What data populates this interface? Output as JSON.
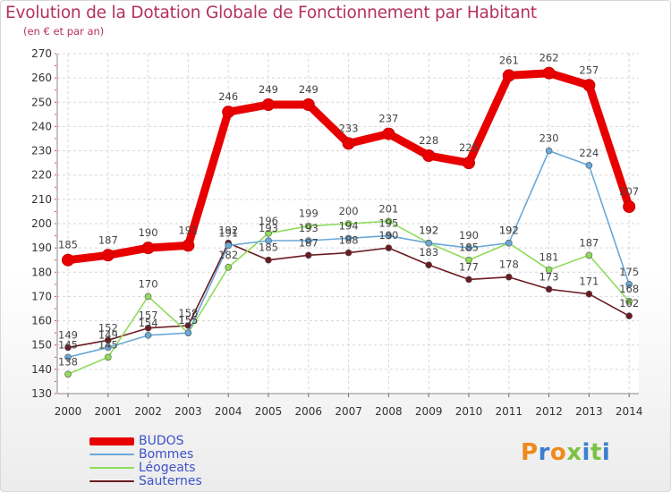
{
  "title": "Evolution de la Dotation Globale de Fonctionnement par Habitant",
  "subtitle": "(en € et par an)",
  "logo": "Proxiti",
  "chart_data": {
    "type": "line",
    "x": [
      "2000",
      "2001",
      "2002",
      "2003",
      "2004",
      "2005",
      "2006",
      "2007",
      "2008",
      "2009",
      "2010",
      "2011",
      "2012",
      "2013",
      "2014"
    ],
    "ylim": [
      130,
      270
    ],
    "yticks": [
      130,
      140,
      150,
      160,
      170,
      180,
      190,
      200,
      210,
      220,
      230,
      240,
      250,
      260,
      270
    ],
    "grid": true,
    "legend_position": "bottom-left",
    "series": [
      {
        "name": "BUDOS",
        "color": "#e80000",
        "values": [
          185,
          187,
          190,
          191,
          246,
          249,
          249,
          233,
          237,
          228,
          225,
          261,
          262,
          257,
          207
        ]
      },
      {
        "name": "Bommes",
        "color": "#6aa8d8",
        "values": [
          145,
          149,
          154,
          155,
          191,
          193,
          193,
          194,
          195,
          192,
          190,
          192,
          230,
          224,
          175
        ]
      },
      {
        "name": "Léogeats",
        "color": "#8edc5a",
        "values": [
          138,
          145,
          170,
          155,
          182,
          196,
          199,
          200,
          201,
          192,
          185,
          192,
          181,
          187,
          168
        ]
      },
      {
        "name": "Sauternes",
        "color": "#6b1a22",
        "values": [
          149,
          152,
          157,
          158,
          192,
          185,
          187,
          188,
          190,
          183,
          177,
          178,
          173,
          171,
          162
        ]
      }
    ]
  }
}
